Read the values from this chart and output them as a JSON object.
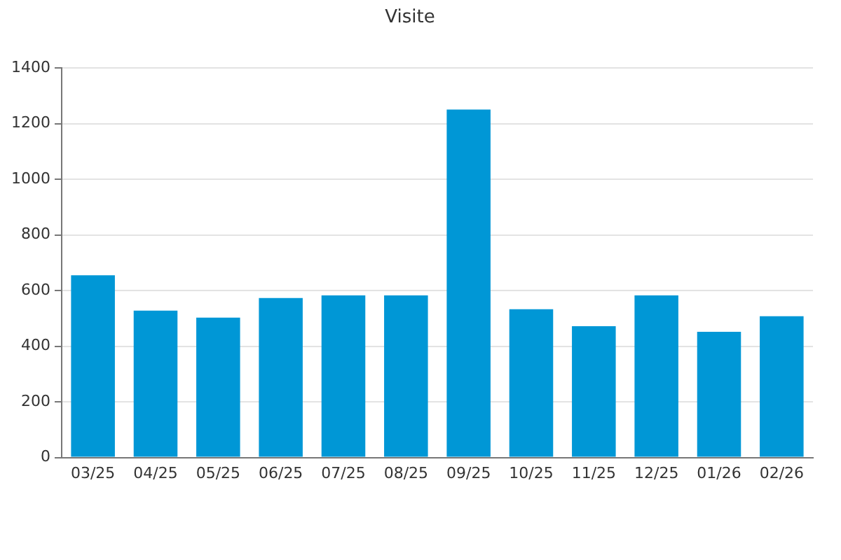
{
  "chart_data": {
    "type": "bar",
    "title": "Visite",
    "categories": [
      "03/25",
      "04/25",
      "05/25",
      "06/25",
      "07/25",
      "08/25",
      "09/25",
      "10/25",
      "11/25",
      "12/25",
      "01/26",
      "02/26"
    ],
    "values": [
      655,
      528,
      503,
      573,
      583,
      583,
      1251,
      533,
      472,
      583,
      452,
      508
    ],
    "color": "#0097d6",
    "ylim": [
      0,
      1400
    ],
    "yticks": [
      0,
      200,
      400,
      600,
      800,
      1000,
      1200,
      1400
    ],
    "grid": "y",
    "legend": false
  }
}
